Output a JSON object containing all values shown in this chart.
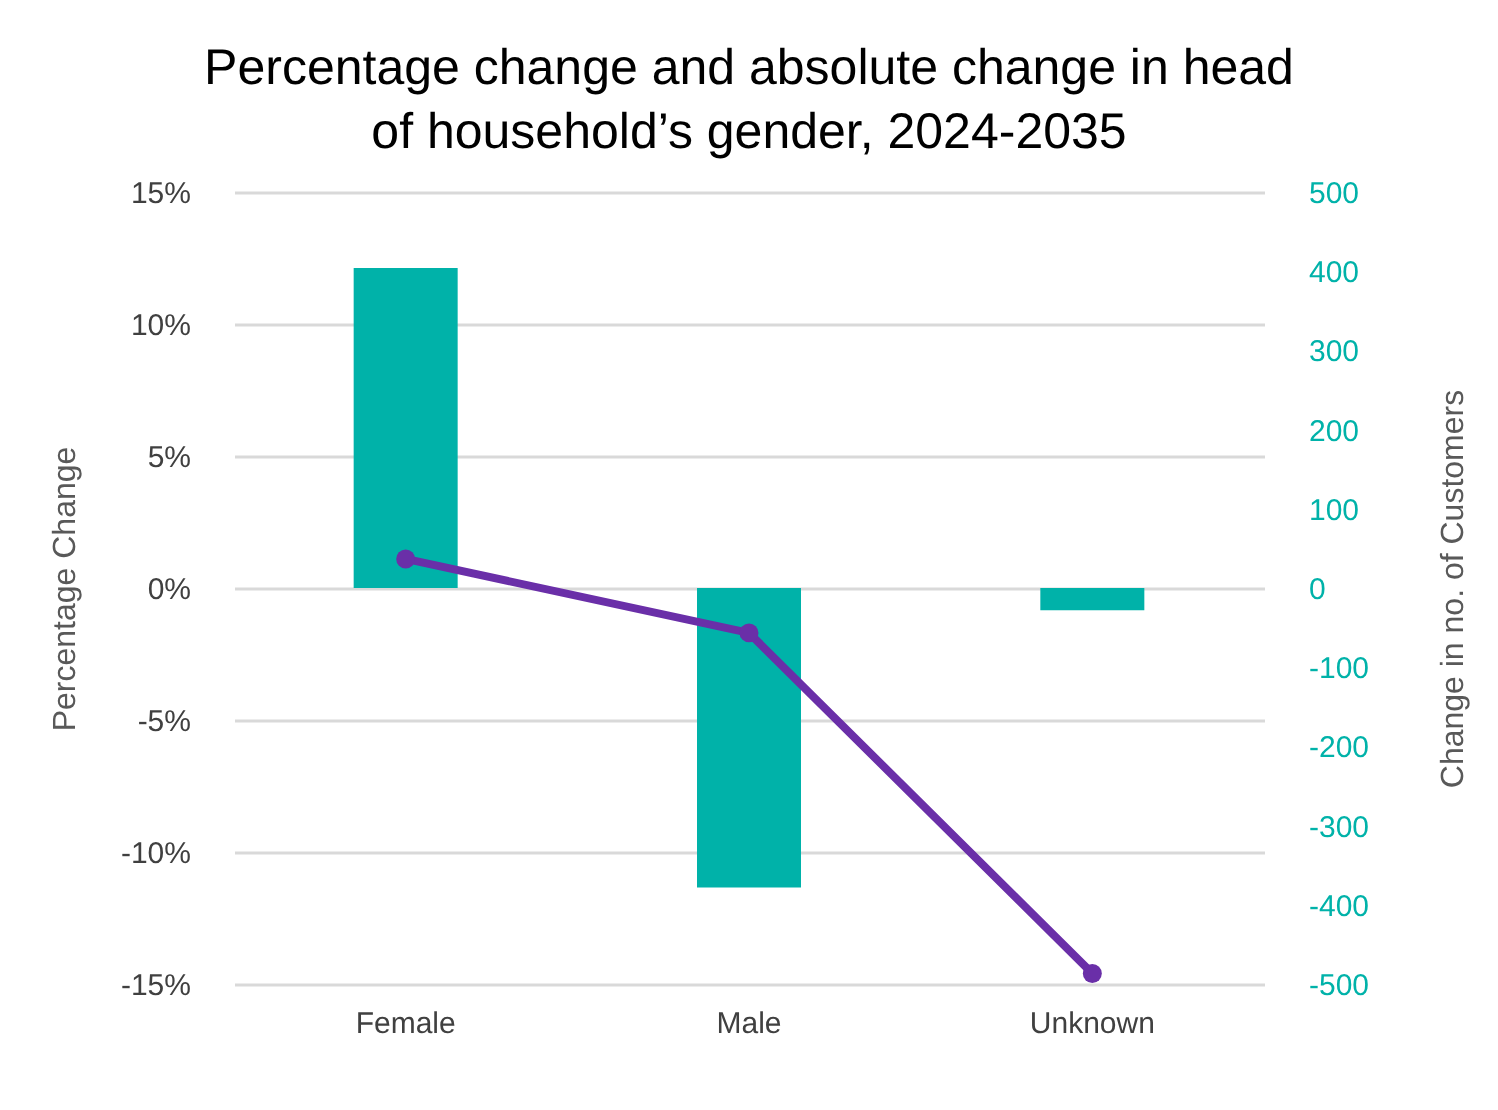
{
  "chart_data": {
    "type": "bar",
    "title": "Percentage change and absolute change in head of household’s gender, 2024-2035",
    "categories": [
      "Female",
      "Male",
      "Unknown"
    ],
    "ylabel": "Percentage Change",
    "y2label": "Change in no. of Customers",
    "ylim": [
      -15,
      15
    ],
    "yticks": [
      {
        "value": -15,
        "label": "-15%"
      },
      {
        "value": -10,
        "label": "-10%"
      },
      {
        "value": -5,
        "label": "-5%"
      },
      {
        "value": 0,
        "label": "0%"
      },
      {
        "value": 5,
        "label": "5%"
      },
      {
        "value": 10,
        "label": "10%"
      },
      {
        "value": 15,
        "label": "15%"
      }
    ],
    "y2lim": [
      -500,
      500
    ],
    "y2ticks": [
      -500,
      -400,
      -300,
      -200,
      -100,
      0,
      100,
      200,
      300,
      400,
      500
    ],
    "grid": "y",
    "series": [
      {
        "axis": "y2",
        "color": "#00b2a9",
        "values": [
          404,
          -378,
          -28
        ]
      },
      {
        "type": "line",
        "axis": "y",
        "color": "#6a2fa8",
        "marker": "circle",
        "line_style": "solid",
        "values": [
          1.1,
          -1.7,
          -14.6
        ]
      }
    ]
  }
}
